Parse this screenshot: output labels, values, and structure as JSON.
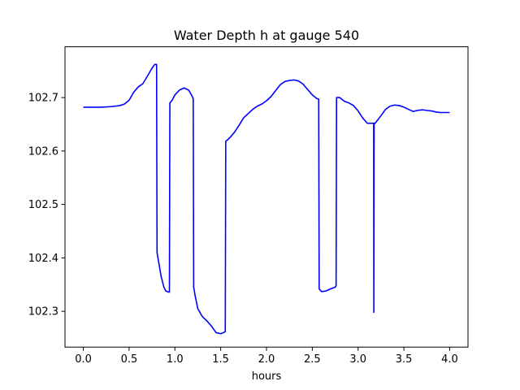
{
  "chart_data": {
    "type": "line",
    "title": "Water Depth h at gauge 540",
    "xlabel": "hours",
    "ylabel": "",
    "xlim": [
      -0.2,
      4.2
    ],
    "ylim": [
      102.233,
      102.795
    ],
    "xticks": [
      0.0,
      0.5,
      1.0,
      1.5,
      2.0,
      2.5,
      3.0,
      3.5,
      4.0
    ],
    "xtick_labels": [
      "0.0",
      "0.5",
      "1.0",
      "1.5",
      "2.0",
      "2.5",
      "3.0",
      "3.5",
      "4.0"
    ],
    "yticks": [
      102.3,
      102.4,
      102.5,
      102.6,
      102.7
    ],
    "ytick_labels": [
      "102.3",
      "102.4",
      "102.5",
      "102.6",
      "102.7"
    ],
    "grid": false,
    "series": [
      {
        "color": "#0000ff",
        "x": [
          0.0,
          0.1,
          0.2,
          0.3,
          0.4,
          0.45,
          0.5,
          0.55,
          0.6,
          0.65,
          0.7,
          0.75,
          0.78,
          0.8,
          0.805,
          0.82,
          0.85,
          0.88,
          0.9,
          0.93,
          0.94,
          0.945,
          0.97,
          1.0,
          1.05,
          1.1,
          1.15,
          1.18,
          1.2,
          1.205,
          1.22,
          1.25,
          1.3,
          1.35,
          1.4,
          1.45,
          1.5,
          1.53,
          1.55,
          1.555,
          1.6,
          1.65,
          1.7,
          1.75,
          1.8,
          1.85,
          1.9,
          1.95,
          2.0,
          2.05,
          2.1,
          2.15,
          2.2,
          2.25,
          2.3,
          2.35,
          2.4,
          2.45,
          2.5,
          2.55,
          2.57,
          2.575,
          2.6,
          2.65,
          2.7,
          2.75,
          2.76,
          2.765,
          2.8,
          2.85,
          2.9,
          2.95,
          3.0,
          3.05,
          3.1,
          3.14,
          3.17,
          3.172,
          3.175,
          3.18,
          3.2,
          3.25,
          3.3,
          3.35,
          3.4,
          3.45,
          3.5,
          3.55,
          3.6,
          3.65,
          3.7,
          3.75,
          3.8,
          3.85,
          3.9,
          3.95,
          4.0
        ],
        "values": [
          102.682,
          102.682,
          102.682,
          102.683,
          102.685,
          102.688,
          102.695,
          102.71,
          102.72,
          102.726,
          102.74,
          102.755,
          102.762,
          102.762,
          102.41,
          102.395,
          102.365,
          102.345,
          102.338,
          102.336,
          102.336,
          102.69,
          102.695,
          102.705,
          102.714,
          102.718,
          102.714,
          102.705,
          102.698,
          102.345,
          102.33,
          102.305,
          102.29,
          102.282,
          102.272,
          102.26,
          102.258,
          102.26,
          102.262,
          102.618,
          102.625,
          102.635,
          102.648,
          102.662,
          102.67,
          102.678,
          102.684,
          102.688,
          102.694,
          102.702,
          102.713,
          102.724,
          102.73,
          102.732,
          102.733,
          102.731,
          102.725,
          102.715,
          102.705,
          102.698,
          102.697,
          102.342,
          102.337,
          102.338,
          102.342,
          102.345,
          102.348,
          102.7,
          102.7,
          102.693,
          102.69,
          102.685,
          102.675,
          102.662,
          102.652,
          102.652,
          102.652,
          102.298,
          102.652,
          102.651,
          102.655,
          102.666,
          102.678,
          102.684,
          102.686,
          102.685,
          102.682,
          102.678,
          102.674,
          102.676,
          102.677,
          102.676,
          102.675,
          102.673,
          102.672,
          102.672,
          102.672
        ]
      }
    ]
  }
}
